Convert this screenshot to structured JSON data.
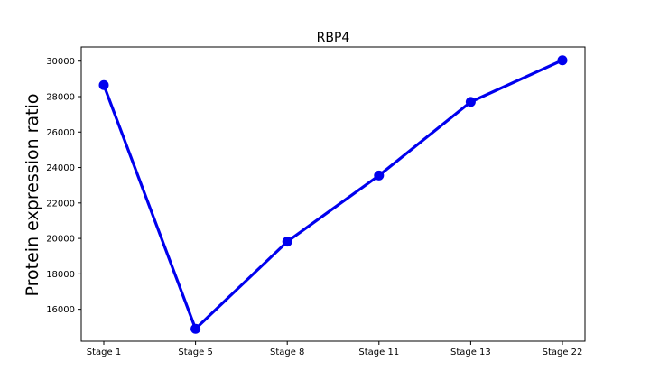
{
  "chart_data": {
    "type": "line",
    "title": "RBP4",
    "xlabel": "",
    "ylabel": "Protein expression ratio",
    "categories": [
      "Stage 1",
      "Stage 5",
      "Stage 8",
      "Stage 11",
      "Stage 13",
      "Stage 22"
    ],
    "series": [
      {
        "values": [
          28650,
          14900,
          19820,
          23550,
          27700,
          30050
        ]
      }
    ],
    "yticks": [
      16000,
      18000,
      20000,
      22000,
      24000,
      26000,
      28000,
      30000
    ],
    "ylim": [
      14200,
      30800
    ],
    "grid": false,
    "line_color": "#0000ee"
  }
}
